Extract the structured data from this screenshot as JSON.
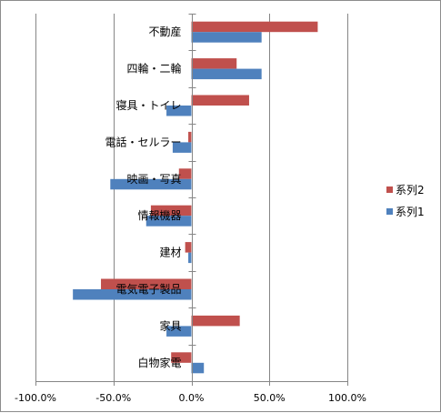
{
  "chart_data": {
    "type": "bar",
    "orientation": "horizontal",
    "categories": [
      "不動産",
      "四輪・二輪",
      "寝具・トイレ",
      "電話・セルラー",
      "映画・写真",
      "情報機器",
      "建材",
      "電気電子製品",
      "家具",
      "白物家電"
    ],
    "series": [
      {
        "name": "系列2",
        "color": "#c0504d",
        "values": [
          81,
          29,
          37,
          -2,
          -8,
          -26,
          -4,
          -58,
          31,
          -13
        ]
      },
      {
        "name": "系列1",
        "color": "#4f81bd",
        "values": [
          45,
          45,
          -16,
          -12,
          -52,
          -29,
          -2,
          -76,
          -16,
          8
        ]
      }
    ],
    "xlim": [
      -100,
      100
    ],
    "xticks": [
      -100,
      -50,
      0,
      50,
      100
    ],
    "xtick_labels": [
      "-100.0%",
      "-50.0%",
      "0.0%",
      "50.0%",
      "100.0%"
    ],
    "grid": true,
    "legend": {
      "position": "right",
      "entries": [
        "系列2",
        "系列1"
      ]
    }
  }
}
